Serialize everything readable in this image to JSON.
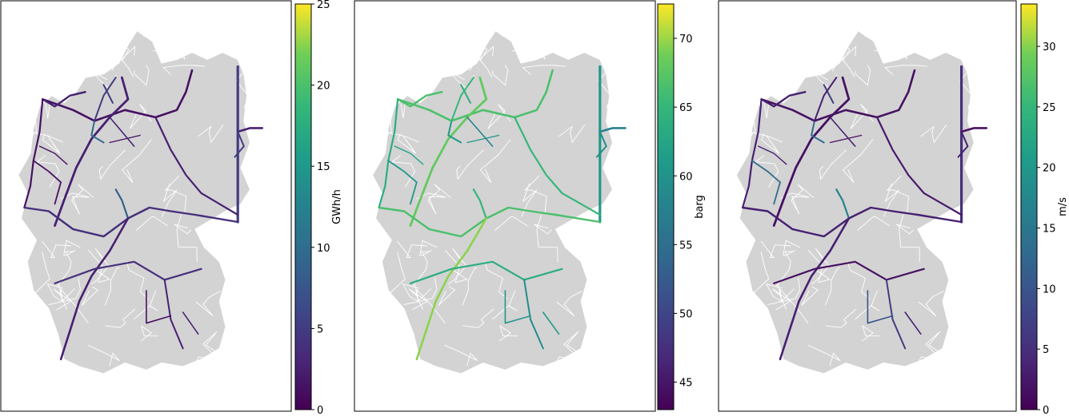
{
  "figure": {
    "panels": [
      {
        "id": "flow",
        "colorbar": {
          "label": "GWh/h",
          "min": 0,
          "max": 25,
          "ticks": [
            0,
            5,
            10,
            15,
            20,
            25
          ],
          "colormap": "viridis"
        }
      },
      {
        "id": "pressure",
        "colorbar": {
          "label": "barg",
          "min": 43,
          "max": 72.5,
          "ticks": [
            45,
            50,
            55,
            60,
            65,
            70
          ],
          "colormap": "viridis"
        }
      },
      {
        "id": "velocity",
        "colorbar": {
          "label": "m/s",
          "min": 0,
          "max": 33.5,
          "ticks": [
            0,
            5,
            10,
            15,
            20,
            25,
            30
          ],
          "colormap": "viridis"
        }
      }
    ],
    "map_fill": "#d3d3d3",
    "border_color": "#ffffff"
  }
}
